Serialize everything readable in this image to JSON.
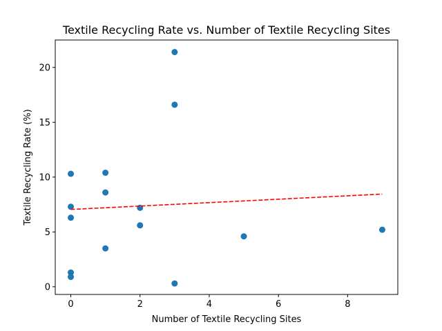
{
  "chart_data": {
    "type": "scatter",
    "title": "Textile Recycling Rate vs. Number of Textile Recycling Sites",
    "xlabel": "Number of Textile Recycling Sites",
    "ylabel": "Textile Recycling Rate (%)",
    "xlim": [
      -0.45,
      9.45
    ],
    "ylim": [
      -0.7,
      22.5
    ],
    "xticks": [
      0,
      2,
      4,
      6,
      8
    ],
    "yticks": [
      0,
      5,
      10,
      15,
      20
    ],
    "grid": false,
    "colors": {
      "points": "#1f77b4",
      "trend": "#ff0000"
    },
    "points": [
      {
        "x": 3,
        "y": 21.4
      },
      {
        "x": 3,
        "y": 16.6
      },
      {
        "x": 0,
        "y": 10.3
      },
      {
        "x": 1,
        "y": 10.4
      },
      {
        "x": 1,
        "y": 8.6
      },
      {
        "x": 0,
        "y": 7.3
      },
      {
        "x": 2,
        "y": 7.2
      },
      {
        "x": 0,
        "y": 6.3
      },
      {
        "x": 2,
        "y": 5.6
      },
      {
        "x": 9,
        "y": 5.2
      },
      {
        "x": 5,
        "y": 4.6
      },
      {
        "x": 1,
        "y": 3.5
      },
      {
        "x": 0,
        "y": 1.3
      },
      {
        "x": 0,
        "y": 0.9
      },
      {
        "x": 3,
        "y": 0.3
      }
    ],
    "trendline": {
      "style": "dashed",
      "x": [
        0,
        9
      ],
      "y": [
        7.05,
        8.45
      ]
    }
  }
}
